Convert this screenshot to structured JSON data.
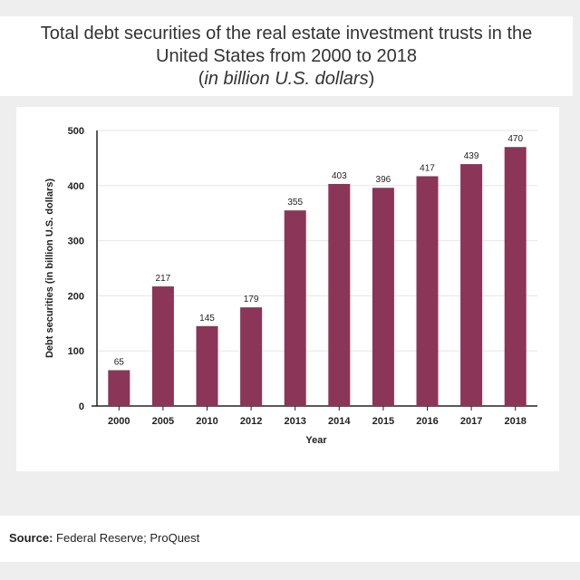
{
  "title": {
    "line1": "Total debt securities of the real estate investment trusts in the",
    "line2": "United States from 2000 to 2018",
    "unit_open": "(",
    "unit": "in billion U.S. dollars",
    "unit_close": ")"
  },
  "source": {
    "label": "Source:",
    "text": "Federal Reserve; ProQuest"
  },
  "colors": {
    "bar": "#8b3558",
    "grid": "#e6e6e6",
    "axis": "#222222"
  },
  "chart_data": {
    "type": "bar",
    "categories": [
      "2000",
      "2005",
      "2010",
      "2012",
      "2013",
      "2014",
      "2015",
      "2016",
      "2017",
      "2018"
    ],
    "values": [
      65,
      217,
      145,
      179,
      355,
      403,
      396,
      417,
      439,
      470
    ],
    "value_labels": [
      "65",
      "217",
      "145",
      "179",
      "355",
      "403",
      "396",
      "417",
      "439",
      "470"
    ],
    "xlabel": "Year",
    "ylabel": "Debt securities (in billion U.S. dollars)",
    "ylim": [
      0,
      500
    ],
    "yticks": [
      "0",
      "100",
      "200",
      "300",
      "400",
      "500"
    ],
    "grid": true,
    "legend": "none"
  }
}
